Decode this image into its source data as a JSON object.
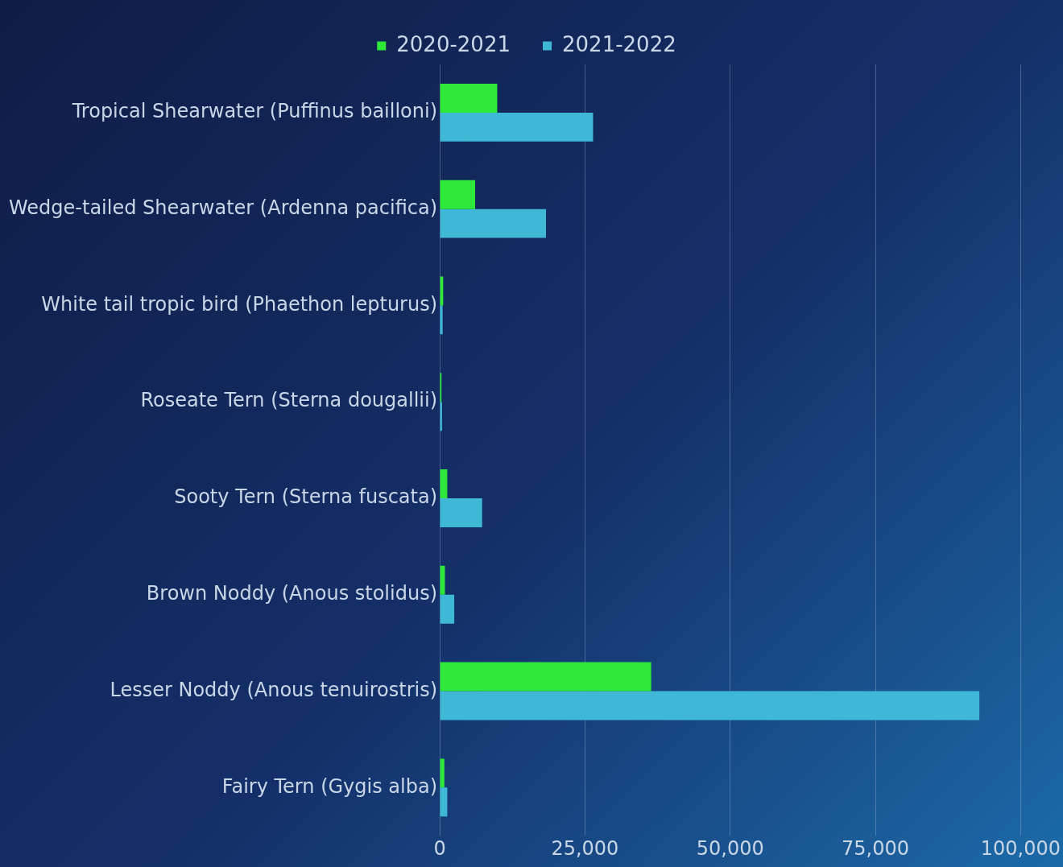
{
  "chart_data": {
    "type": "bar",
    "orientation": "horizontal",
    "categories": [
      "Tropical Shearwater (Puffinus bailloni)",
      "Wedge-tailed Shearwater (Ardenna pacifica)",
      "White tail tropic bird (Phaethon lepturus)",
      "Roseate Tern (Sterna dougallii)",
      "Sooty Tern (Sterna fuscata)",
      "Brown Noddy (Anous stolidus)",
      "Lesser Noddy (Anous tenuirostris)",
      "Fairy Tern (Gygis alba)"
    ],
    "series": [
      {
        "name": "2020-2021",
        "color": "#2ee83a",
        "values": [
          9900,
          6100,
          600,
          300,
          1300,
          900,
          36400,
          800
        ]
      },
      {
        "name": "2021-2022",
        "color": "#3fb8d8",
        "values": [
          26400,
          18300,
          500,
          400,
          7300,
          2500,
          92900,
          1300
        ]
      }
    ],
    "xlim": [
      0,
      100000
    ],
    "xticks": [
      0,
      {
        "value": 25000,
        "label": "25,000"
      },
      {
        "value": 50000,
        "label": "50,000"
      },
      {
        "value": 75000,
        "label": "75,000"
      },
      {
        "value": 100000,
        "label": "100,000"
      }
    ],
    "grid": "x",
    "legend": "top"
  }
}
